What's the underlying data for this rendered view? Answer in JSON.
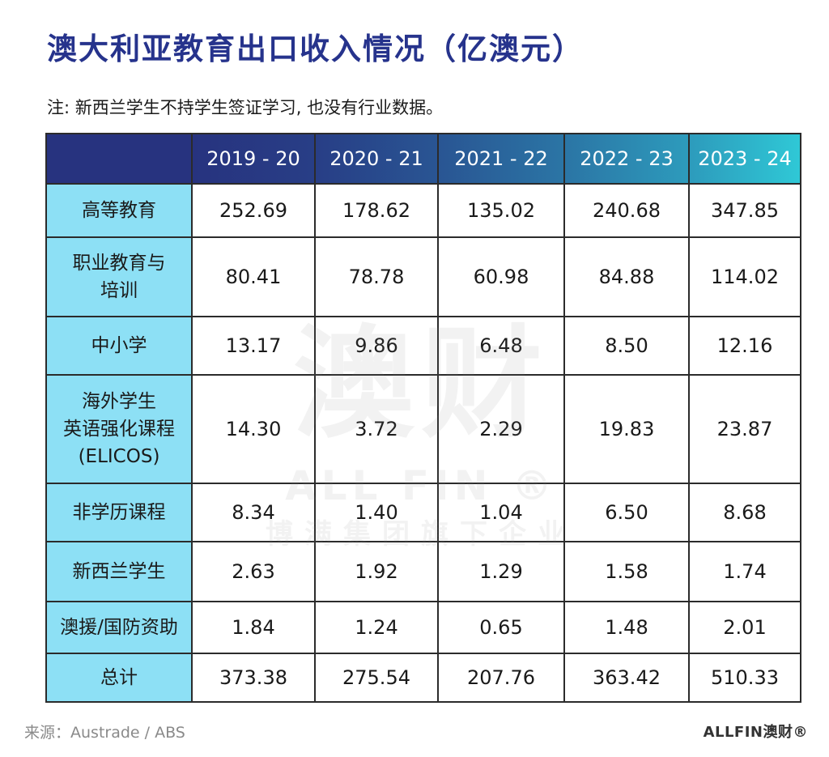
{
  "header": {
    "title": "澳大利亚教育出口收入情况（亿澳元）",
    "note": "注: 新西兰学生不持学生签证学习, 也没有行业数据。"
  },
  "watermark": {
    "big": "澳财",
    "mid": "ALL FIN ®",
    "small": "博满集团旗下企业"
  },
  "chart_data": {
    "type": "table",
    "title": "澳大利亚教育出口收入情况（亿澳元）",
    "columns": [
      "",
      "2019 - 20",
      "2020 - 21",
      "2021 - 22",
      "2022 - 23",
      "2023 - 24"
    ],
    "rows": [
      {
        "category": "高等教育",
        "values": [
          "252.69",
          "178.62",
          "135.02",
          "240.68",
          "347.85"
        ]
      },
      {
        "category": "职业教育与\n培训",
        "values": [
          "80.41",
          "78.78",
          "60.98",
          "84.88",
          "114.02"
        ]
      },
      {
        "category": "中小学",
        "values": [
          "13.17",
          "9.86",
          "6.48",
          "8.50",
          "12.16"
        ]
      },
      {
        "category": "海外学生\n英语强化课程\n(ELICOS)",
        "values": [
          "14.30",
          "3.72",
          "2.29",
          "19.83",
          "23.87"
        ]
      },
      {
        "category": "非学历课程",
        "values": [
          "8.34",
          "1.40",
          "1.04",
          "6.50",
          "8.68"
        ]
      },
      {
        "category": "新西兰学生",
        "values": [
          "2.63",
          "1.92",
          "1.29",
          "1.58",
          "1.74"
        ]
      },
      {
        "category": "澳援/国防资助",
        "values": [
          "1.84",
          "1.24",
          "0.65",
          "1.48",
          "2.01"
        ]
      },
      {
        "category": "总计",
        "values": [
          "373.38",
          "275.54",
          "207.76",
          "363.42",
          "510.33"
        ]
      }
    ]
  },
  "footer": {
    "source": "来源：Austrade / ABS",
    "logo": "ALLFIN澳财®"
  },
  "colors": {
    "title": "#26338c",
    "header_start": "#27337f",
    "header_end": "#2fc8d6",
    "category_bg": "#8de0f5",
    "border": "#2b2b2b"
  }
}
